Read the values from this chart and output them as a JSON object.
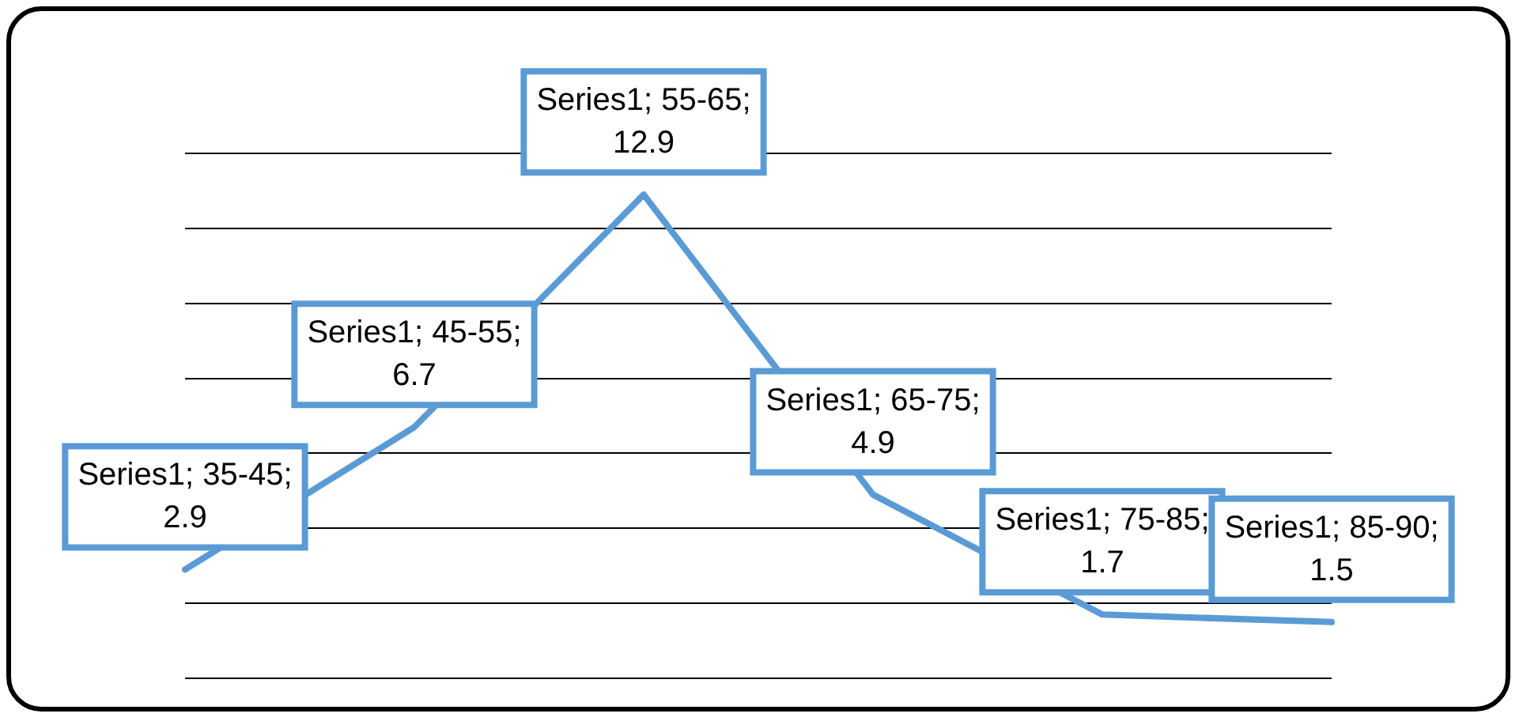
{
  "chart_data": {
    "type": "line",
    "categories": [
      null,
      null,
      null,
      null,
      null,
      null
    ],
    "series": [
      {
        "color": "#5b9bd5",
        "values": [
          2.9,
          6.7,
          12.9,
          4.9,
          1.7,
          1.5
        ],
        "value_labels": [
          "Series1; 35-45; 2.9",
          "Series1; 45-55; 6.7",
          "Series1; 55-65; 12.9",
          "Series1; 65-75; 4.9",
          "Series1; 75-85; 1.7",
          "Series1; 85-90; 1.5"
        ]
      }
    ],
    "grid": "y",
    "legend": false,
    "marker": "none",
    "line_style": "solid",
    "tick_labels": false
  }
}
